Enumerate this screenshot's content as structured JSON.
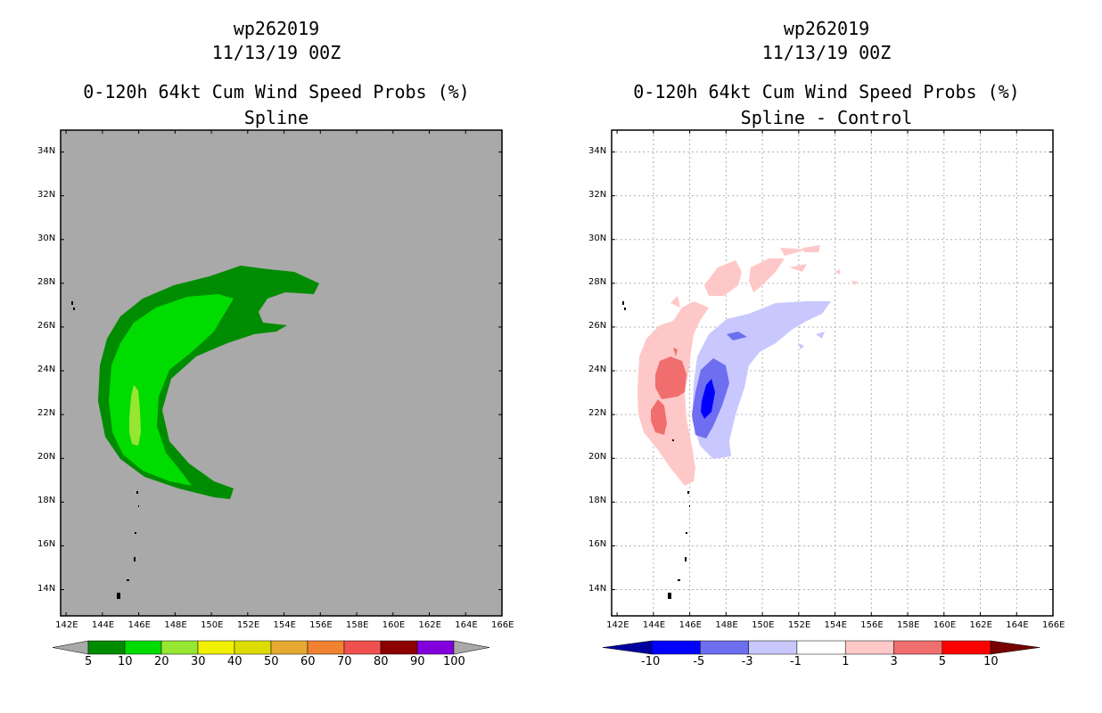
{
  "left": {
    "title_line1": "wp262019",
    "title_line2": "11/13/19 00Z",
    "title_line3": "0-120h 64kt Cum Wind Speed Probs (%)",
    "title_line4": "Spline",
    "background_color": "#a9a9a9",
    "colorbar": {
      "colors": [
        "#008c00",
        "#00dc00",
        "#96e632",
        "#f0f000",
        "#dcdc00",
        "#e6aa32",
        "#f08232",
        "#f05050",
        "#8c0000",
        "#8200dc"
      ],
      "end_color": "#a9a9a9",
      "labels": [
        "5",
        "10",
        "20",
        "30",
        "40",
        "50",
        "60",
        "70",
        "80",
        "90",
        "100"
      ]
    }
  },
  "right": {
    "title_line1": "wp262019",
    "title_line2": "11/13/19 00Z",
    "title_line3": "0-120h 64kt Cum Wind Speed Probs (%)",
    "title_line4": "Spline - Control",
    "background_color": "#ffffff",
    "colorbar": {
      "colors": [
        "#0000ff",
        "#6e6ef0",
        "#c8c8ff",
        "#ffffff",
        "#ffc8c8",
        "#f06e6e",
        "#ff0000"
      ],
      "low_end_color": "#0000a0",
      "high_end_color": "#780000",
      "labels": [
        "-10",
        "-5",
        "-3",
        "-1",
        "1",
        "3",
        "5",
        "10"
      ]
    }
  },
  "axes": {
    "x_ticks": [
      "142E",
      "144E",
      "146E",
      "148E",
      "150E",
      "152E",
      "154E",
      "156E",
      "158E",
      "160E",
      "162E",
      "164E",
      "166E"
    ],
    "y_ticks": [
      "34N",
      "32N",
      "30N",
      "28N",
      "26N",
      "24N",
      "22N",
      "20N",
      "18N",
      "16N",
      "14N"
    ],
    "lon_range": [
      141.7,
      166.0
    ],
    "lat_range": [
      12.8,
      35.0
    ]
  }
}
